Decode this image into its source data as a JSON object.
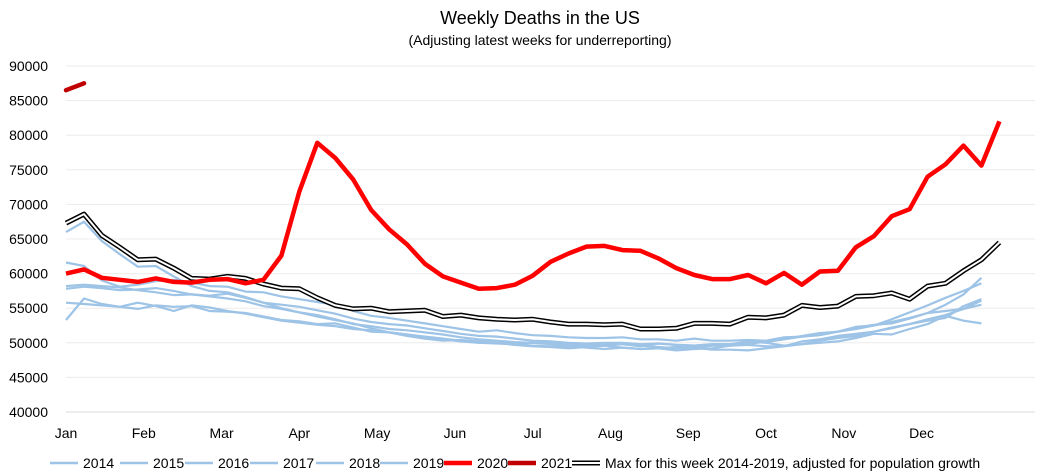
{
  "chart_data": {
    "type": "line",
    "title": "Weekly Deaths in the US",
    "subtitle": "(Adjusting latest weeks for underreporting)",
    "xlabel": "",
    "ylabel": "",
    "ylim": [
      40000,
      90000
    ],
    "yticks": [
      40000,
      45000,
      50000,
      55000,
      60000,
      65000,
      70000,
      75000,
      80000,
      85000,
      90000
    ],
    "month_labels": [
      "Jan",
      "Feb",
      "Mar",
      "Apr",
      "May",
      "Jun",
      "Jul",
      "Aug",
      "Sep",
      "Oct",
      "Nov",
      "Dec"
    ],
    "x_unit": "week",
    "legend_position": "bottom",
    "colors": {
      "historical": "#9dc3e6",
      "y2020": "#ff0000",
      "y2021": "#c00000",
      "max_fill": "#ffffff",
      "max_outline": "#000000"
    },
    "series": [
      {
        "name": "2014",
        "values": [
          53300,
          56400,
          55600,
          55200,
          54900,
          55400,
          55200,
          55300,
          54600,
          54500,
          54300,
          53800,
          53300,
          53100,
          52700,
          52800,
          52200,
          51600,
          51500,
          51000,
          50600,
          50300,
          50400,
          50200,
          50000,
          49900,
          50000,
          49800,
          49600,
          49500,
          49600,
          49800,
          49600,
          49400,
          49200,
          49300,
          49600,
          49600,
          49700,
          49500,
          49500,
          49800,
          50000,
          50200,
          50700,
          51300,
          51200,
          52000,
          52700,
          53900,
          53200,
          52800
        ]
      },
      {
        "name": "2015",
        "values": [
          61600,
          61100,
          59000,
          58100,
          58400,
          58900,
          59100,
          58700,
          58200,
          58100,
          57400,
          57300,
          56700,
          56300,
          55900,
          55500,
          54600,
          53900,
          53600,
          53200,
          52800,
          52400,
          52000,
          51600,
          51800,
          51400,
          51100,
          51000,
          50800,
          50700,
          50700,
          50800,
          50500,
          50500,
          50300,
          50600,
          50300,
          50300,
          50400,
          50300,
          50800,
          50900,
          51100,
          51600,
          52200,
          52600,
          52800,
          53500,
          54300,
          54600,
          54900,
          55500
        ]
      },
      {
        "name": "2016",
        "values": [
          55800,
          55600,
          55400,
          55200,
          55800,
          55300,
          54600,
          55400,
          55100,
          54600,
          54200,
          53700,
          53200,
          52900,
          52600,
          52400,
          52000,
          51800,
          51500,
          51200,
          50900,
          50600,
          50300,
          50000,
          49900,
          49800,
          49600,
          49500,
          49500,
          49300,
          49100,
          49300,
          49100,
          49200,
          49400,
          49300,
          49000,
          49000,
          48900,
          49200,
          49500,
          50200,
          50500,
          51000,
          51300,
          51600,
          52200,
          52700,
          53200,
          53600,
          55300,
          56300
        ]
      },
      {
        "name": "2017",
        "values": [
          58200,
          58400,
          58200,
          58000,
          57600,
          57300,
          56900,
          57000,
          56700,
          56400,
          56000,
          55300,
          54900,
          54400,
          54000,
          53400,
          52700,
          52400,
          52000,
          51800,
          51500,
          51200,
          50800,
          50500,
          50300,
          50100,
          50000,
          50000,
          49900,
          49700,
          49900,
          49800,
          49500,
          49900,
          49700,
          49600,
          49800,
          49800,
          50200,
          50000,
          49600,
          49800,
          50300,
          50700,
          51000,
          51600,
          52100,
          52700,
          53400,
          54000,
          54900,
          56100
        ]
      },
      {
        "name": "2018",
        "values": [
          66000,
          67500,
          64700,
          62800,
          61000,
          61100,
          59600,
          58200,
          57500,
          57300,
          56600,
          55800,
          55000,
          54400,
          53800,
          53300,
          52800,
          52100,
          51500,
          51200,
          50800,
          50500,
          50200,
          50000,
          50000,
          49700,
          49500,
          49400,
          49200,
          49400,
          49600,
          49300,
          49100,
          49200,
          48900,
          49100,
          49200,
          49600,
          49800,
          50200,
          50500,
          51000,
          51400,
          51600,
          52300,
          52500,
          53400,
          54400,
          55400,
          56500,
          57500,
          58600
        ]
      },
      {
        "name": "2019",
        "values": [
          57800,
          58100,
          57900,
          57600,
          57700,
          57900,
          57500,
          57000,
          56800,
          57100,
          56500,
          55800,
          55500,
          55200,
          54700,
          54200,
          53500,
          53000,
          52700,
          52500,
          52100,
          51700,
          51300,
          51000,
          50900,
          50600,
          50300,
          50200,
          50000,
          49900,
          50000,
          50000,
          49800,
          49900,
          49700,
          49600,
          49800,
          49800,
          50000,
          50100,
          50500,
          50900,
          51300,
          51600,
          52000,
          52500,
          53000,
          53600,
          54300,
          55500,
          57000,
          59400
        ]
      },
      {
        "name": "2020",
        "values": [
          60000,
          60600,
          59400,
          59100,
          58800,
          59300,
          58800,
          58700,
          59100,
          59200,
          58600,
          59100,
          62600,
          71900,
          78900,
          76700,
          73600,
          69200,
          66400,
          64200,
          61400,
          59600,
          58700,
          57800,
          57900,
          58400,
          59700,
          61700,
          62900,
          63900,
          64000,
          63400,
          63300,
          62200,
          60800,
          59800,
          59200,
          59200,
          59800,
          58600,
          60100,
          58400,
          60300,
          60400,
          63800,
          65400,
          68300,
          69300,
          74000,
          75800,
          78500,
          75600,
          82000
        ]
      },
      {
        "name": "2021",
        "values": [
          86500,
          87500
        ]
      },
      {
        "name": "Max for this week 2014-2019, adjusted for population growth",
        "values": [
          67300,
          68600,
          65500,
          63800,
          62000,
          62100,
          60800,
          59300,
          59200,
          59600,
          59300,
          58500,
          57900,
          57800,
          56500,
          55400,
          54900,
          55000,
          54500,
          54600,
          54700,
          53800,
          54000,
          53600,
          53400,
          53300,
          53400,
          53000,
          52700,
          52700,
          52600,
          52700,
          52000,
          52000,
          52100,
          52800,
          52800,
          52700,
          53700,
          53600,
          54000,
          55400,
          55100,
          55300,
          56700,
          56800,
          57200,
          56300,
          58200,
          58600,
          60400,
          62000,
          64500
        ]
      }
    ]
  }
}
